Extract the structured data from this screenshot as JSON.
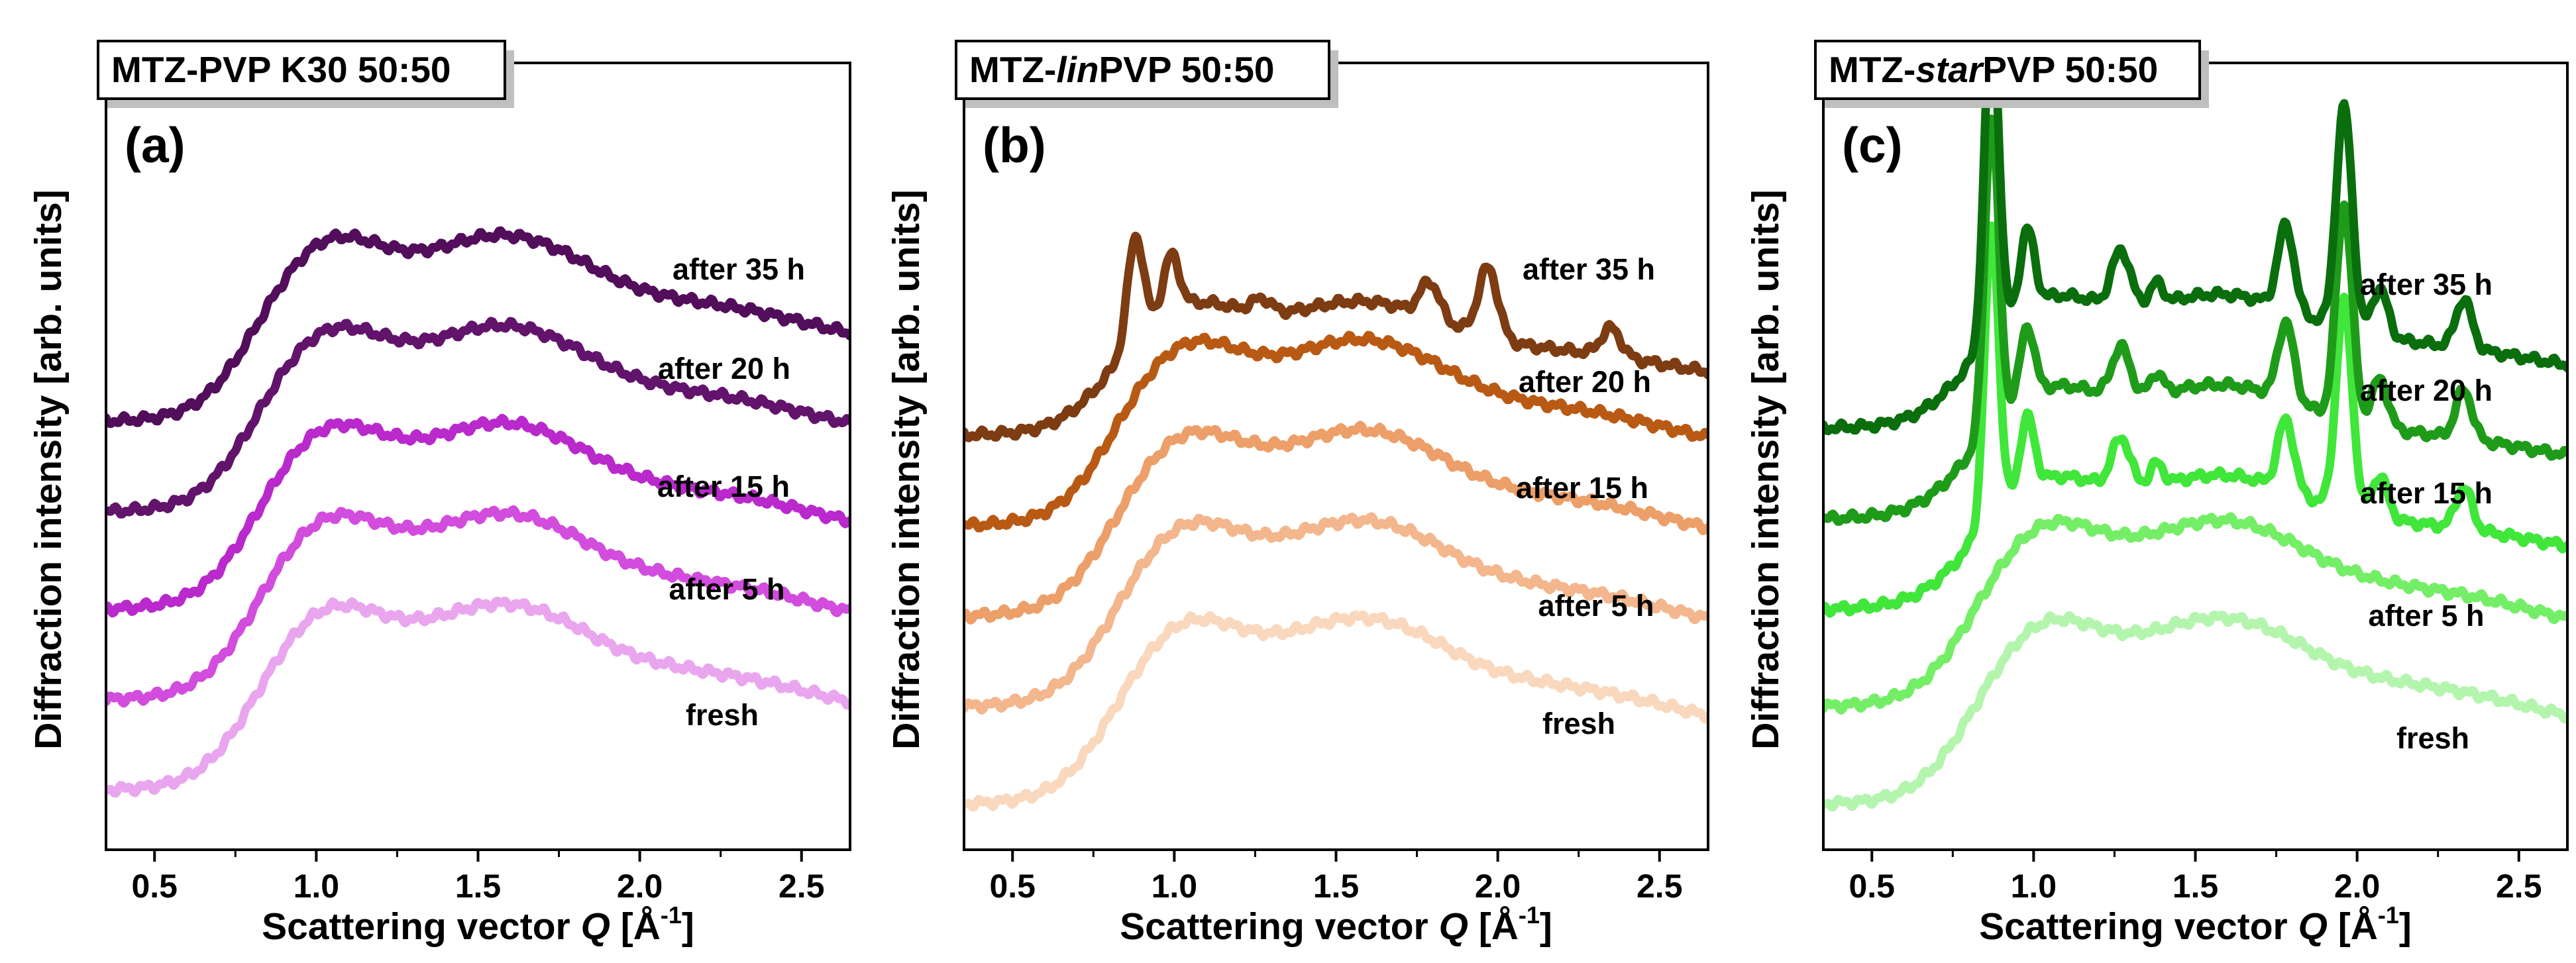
{
  "x_axis": {
    "label_prefix": "Scattering vector ",
    "label_symbol": "Q",
    "label_unit": " [Å",
    "label_exp": "-1",
    "label_close": "]",
    "range": [
      0.35,
      2.65
    ],
    "ticks": [
      0.5,
      1.0,
      1.5,
      2.0,
      2.5
    ],
    "tick_labels": [
      "0.5",
      "1.0",
      "1.5",
      "2.0",
      "2.5"
    ]
  },
  "y_axis": {
    "label": "Diffraction intensity [arb. units]"
  },
  "chart_data": [
    {
      "type": "line",
      "panel": "(a)",
      "title_parts": [
        {
          "text": "MTZ-PVP K30 50:50",
          "italic": false
        }
      ],
      "xlabel": "Scattering vector Q [Å-1]",
      "ylabel": "Diffraction intensity [arb. units]",
      "xlim": [
        0.35,
        2.65
      ],
      "series": [
        {
          "name": "fresh",
          "color": "#e9a6ef",
          "baseline": 0.04,
          "amp": 0.26,
          "crystal": 0,
          "peaks": []
        },
        {
          "name": "after 5 h",
          "color": "#d24cdd",
          "baseline": 0.17,
          "amp": 0.26,
          "crystal": 0,
          "peaks": []
        },
        {
          "name": "after 15 h",
          "color": "#b929cc",
          "baseline": 0.3,
          "amp": 0.26,
          "crystal": 0,
          "peaks": []
        },
        {
          "name": "after 20 h",
          "color": "#62136b",
          "baseline": 0.44,
          "amp": 0.26,
          "crystal": 0,
          "peaks": []
        },
        {
          "name": "after 35 h",
          "color": "#520d5b",
          "baseline": 0.57,
          "amp": 0.26,
          "crystal": 0,
          "peaks": []
        }
      ]
    },
    {
      "type": "line",
      "panel": "(b)",
      "title_parts": [
        {
          "text": "MTZ-",
          "italic": false
        },
        {
          "text": "lin",
          "italic": true
        },
        {
          "text": "PVP 50:50",
          "italic": false
        }
      ],
      "xlabel": "Scattering vector Q [Å-1]",
      "ylabel": "Diffraction intensity [arb. units]",
      "xlim": [
        0.35,
        2.65
      ],
      "series": [
        {
          "name": "fresh",
          "color": "#f9d8bd",
          "baseline": 0.02,
          "amp": 0.26,
          "crystal": 0,
          "peaks": []
        },
        {
          "name": "after 5 h",
          "color": "#f3b68d",
          "baseline": 0.16,
          "amp": 0.26,
          "crystal": 0,
          "peaks": []
        },
        {
          "name": "after 15 h",
          "color": "#ec9f68",
          "baseline": 0.29,
          "amp": 0.26,
          "crystal": 0,
          "peaks": []
        },
        {
          "name": "after 20 h",
          "color": "#b95a14",
          "baseline": 0.42,
          "amp": 0.26,
          "crystal": 0,
          "peaks": []
        },
        {
          "name": "after 35 h",
          "color": "#7e3c12",
          "baseline": 0.55,
          "amp": 0.22,
          "crystal": 1,
          "peaks": [
            [
              0.88,
              0.15,
              0.025
            ],
            [
              0.99,
              0.08,
              0.025
            ],
            [
              1.27,
              0.02,
              0.03
            ],
            [
              1.79,
              0.05,
              0.03
            ],
            [
              1.97,
              0.1,
              0.03
            ],
            [
              2.35,
              0.04,
              0.03
            ]
          ]
        }
      ]
    },
    {
      "type": "line",
      "panel": "(c)",
      "title_parts": [
        {
          "text": "MTZ-",
          "italic": false
        },
        {
          "text": "star",
          "italic": true
        },
        {
          "text": "PVP 50:50",
          "italic": false
        }
      ],
      "xlabel": "Scattering vector Q [Å-1]",
      "ylabel": "Diffraction intensity [arb. units]",
      "xlim": [
        0.35,
        2.65
      ],
      "series": [
        {
          "name": "fresh",
          "color": "#b4f5ae",
          "baseline": 0.02,
          "amp": 0.26,
          "crystal": 0,
          "peaks": []
        },
        {
          "name": "after 5 h",
          "color": "#74ee66",
          "baseline": 0.16,
          "amp": 0.26,
          "crystal": 0,
          "peaks": []
        },
        {
          "name": "after 15 h",
          "color": "#40e63a",
          "baseline": 0.3,
          "amp": 0.22,
          "crystal": 1,
          "peaks": [
            [
              0.87,
              0.42,
              0.022
            ],
            [
              0.98,
              0.1,
              0.022
            ],
            [
              1.27,
              0.07,
              0.028
            ],
            [
              1.38,
              0.03,
              0.02
            ],
            [
              1.78,
              0.1,
              0.025
            ],
            [
              1.96,
              0.3,
              0.025
            ],
            [
              2.07,
              0.06,
              0.025
            ],
            [
              2.33,
              0.06,
              0.025
            ]
          ]
        },
        {
          "name": "after 20 h",
          "color": "#1f9b1a",
          "baseline": 0.43,
          "amp": 0.22,
          "crystal": 1,
          "peaks": [
            [
              0.87,
              0.45,
              0.022
            ],
            [
              0.98,
              0.1,
              0.022
            ],
            [
              1.27,
              0.07,
              0.028
            ],
            [
              1.38,
              0.03,
              0.02
            ],
            [
              1.78,
              0.11,
              0.025
            ],
            [
              1.96,
              0.31,
              0.025
            ],
            [
              2.07,
              0.07,
              0.025
            ],
            [
              2.33,
              0.07,
              0.025
            ]
          ]
        },
        {
          "name": "after 35 h",
          "color": "#0a6e0d",
          "baseline": 0.56,
          "amp": 0.22,
          "crystal": 1,
          "peaks": [
            [
              0.87,
              0.47,
              0.022
            ],
            [
              0.98,
              0.11,
              0.022
            ],
            [
              1.27,
              0.08,
              0.028
            ],
            [
              1.38,
              0.03,
              0.02
            ],
            [
              1.78,
              0.12,
              0.025
            ],
            [
              1.96,
              0.32,
              0.025
            ],
            [
              2.07,
              0.07,
              0.025
            ],
            [
              2.33,
              0.07,
              0.025
            ]
          ]
        }
      ]
    }
  ]
}
